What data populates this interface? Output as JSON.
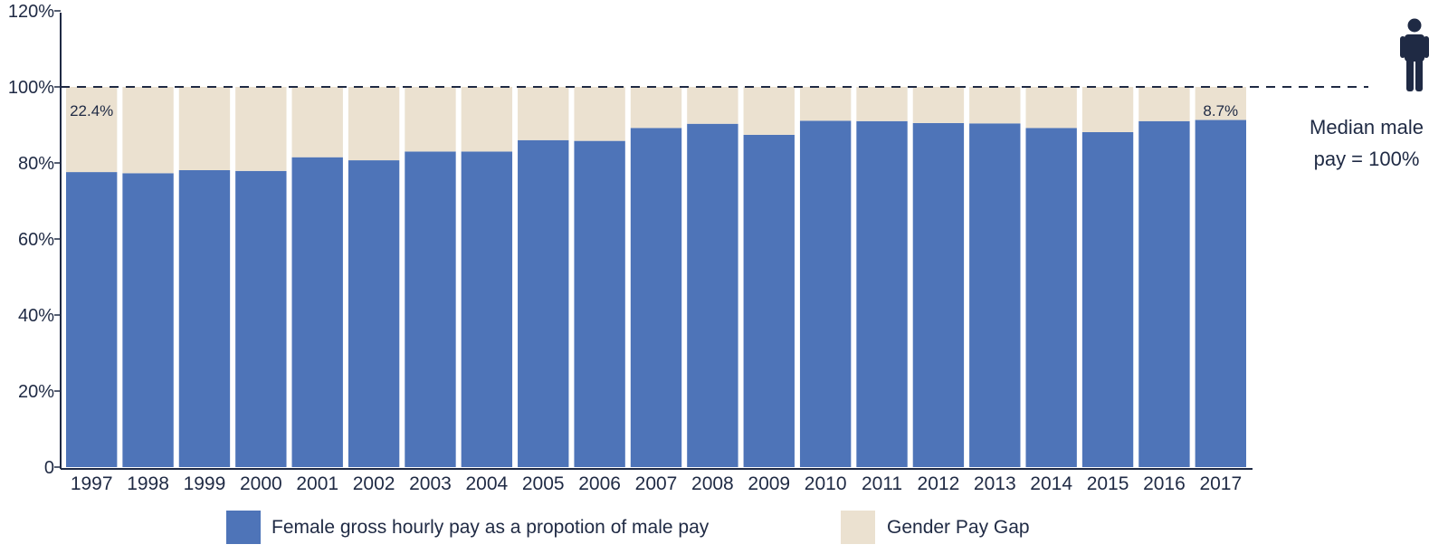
{
  "chart_data": {
    "type": "bar",
    "stacked": true,
    "categories": [
      "1997",
      "1998",
      "1999",
      "2000",
      "2001",
      "2002",
      "2003",
      "2004",
      "2005",
      "2006",
      "2007",
      "2008",
      "2009",
      "2010",
      "2011",
      "2012",
      "2013",
      "2014",
      "2015",
      "2016",
      "2017"
    ],
    "series": [
      {
        "name": "Female gross hourly pay as a propotion of male pay",
        "color": "#4e74b8",
        "values": [
          77.6,
          77.3,
          78.1,
          77.9,
          81.5,
          80.7,
          83.0,
          83.0,
          86.0,
          85.8,
          89.2,
          90.3,
          87.4,
          91.1,
          91.0,
          90.5,
          90.4,
          89.2,
          88.1,
          91.0,
          91.3
        ]
      },
      {
        "name": "Gender Pay Gap",
        "color": "#ebe1d0",
        "values": [
          22.4,
          22.7,
          21.9,
          22.1,
          18.5,
          19.3,
          17.0,
          17.0,
          14.0,
          14.2,
          10.8,
          9.7,
          12.6,
          8.9,
          9.0,
          9.5,
          9.6,
          10.8,
          11.9,
          9.0,
          8.7
        ]
      }
    ],
    "data_labels": [
      {
        "category": "1997",
        "text": "22.4%"
      },
      {
        "category": "2017",
        "text": "8.7%"
      }
    ],
    "y_ticks": [
      "0",
      "20%",
      "40%",
      "60%",
      "80%",
      "100%",
      "120%"
    ],
    "ylim": [
      0,
      120
    ],
    "reference_line": {
      "value": 100,
      "style": "dashed",
      "label_lines": [
        "Median male",
        "pay = 100%"
      ]
    },
    "icon": "person-icon",
    "legend": {
      "position": "bottom"
    },
    "grid": false
  }
}
